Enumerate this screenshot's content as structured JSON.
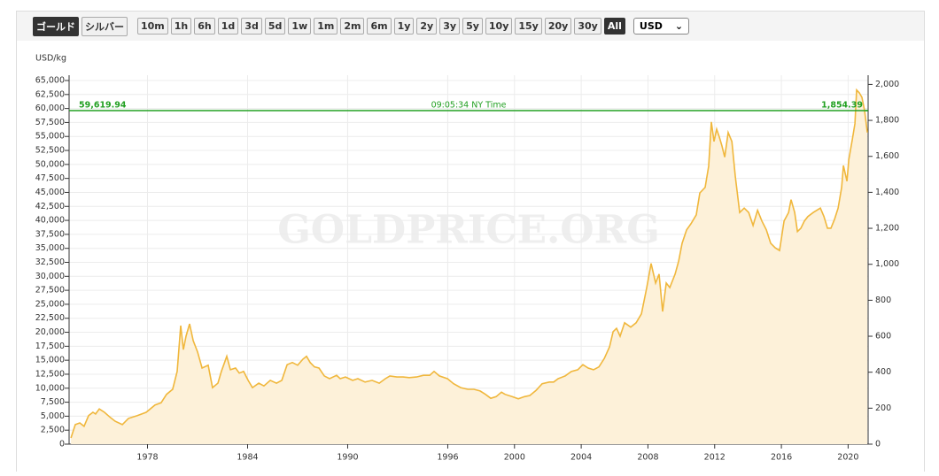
{
  "toolbar": {
    "metal_buttons": [
      "ゴールド",
      "シルバー"
    ],
    "active_metal": 0,
    "range_buttons": [
      "10m",
      "1h",
      "6h",
      "1d",
      "3d",
      "5d",
      "1w",
      "1m",
      "2m",
      "6m",
      "1y",
      "2y",
      "3y",
      "5y",
      "10y",
      "15y",
      "20y",
      "30y",
      "All"
    ],
    "active_range": 18,
    "currency": "USD"
  },
  "chart_data": {
    "type": "area",
    "y_label": "USD/kg",
    "watermark": "GOLDPRICE.ORG",
    "color": "#f0b73c",
    "fill": "#fdf1d9",
    "grid": true,
    "x": [
      1973.41,
      1973.67,
      1973.94,
      1974.2,
      1974.47,
      1974.73,
      1974.89,
      1975.11,
      1975.42,
      1975.8,
      1976.06,
      1976.49,
      1976.86,
      1977.39,
      1977.92,
      1978.45,
      1978.82,
      1979.14,
      1979.51,
      1979.78,
      1979.99,
      1980.15,
      1980.31,
      1980.52,
      1980.74,
      1981.0,
      1981.27,
      1981.64,
      1981.9,
      1982.22,
      1982.43,
      1982.75,
      1982.97,
      1983.28,
      1983.5,
      1983.76,
      1984.03,
      1984.29,
      1984.67,
      1984.98,
      1985.36,
      1985.73,
      1986.05,
      1986.37,
      1986.68,
      1987.0,
      1987.32,
      1987.53,
      1987.75,
      1988.01,
      1988.28,
      1988.6,
      1988.91,
      1989.34,
      1989.55,
      1989.87,
      1990.3,
      1990.61,
      1991.04,
      1991.46,
      1991.89,
      1992.26,
      1992.53,
      1992.95,
      1993.32,
      1993.69,
      1994.12,
      1994.54,
      1994.92,
      1995.18,
      1995.5,
      1995.98,
      1996.35,
      1996.77,
      1997.2,
      1997.57,
      1997.94,
      1998.26,
      1998.58,
      1998.9,
      1999.22,
      1999.43,
      1999.86,
      2000.23,
      2000.6,
      2000.92,
      2001.29,
      2001.66,
      2002.09,
      2002.35,
      2002.62,
      2003.04,
      2003.41,
      2003.79,
      2004.1,
      2004.42,
      2004.74,
      2005.06,
      2005.38,
      2005.7,
      2005.91,
      2006.12,
      2006.33,
      2006.6,
      2006.97,
      2007.29,
      2007.61,
      2007.93,
      2008.19,
      2008.46,
      2008.67,
      2008.88,
      2009.1,
      2009.31,
      2009.63,
      2009.84,
      2010.05,
      2010.32,
      2010.58,
      2010.9,
      2011.11,
      2011.43,
      2011.64,
      2011.8,
      2011.96,
      2012.12,
      2012.28,
      2012.44,
      2012.6,
      2012.81,
      2013.03,
      2013.24,
      2013.5,
      2013.77,
      2014.04,
      2014.3,
      2014.57,
      2014.83,
      2015.1,
      2015.36,
      2015.63,
      2015.89,
      2016.16,
      2016.43,
      2016.58,
      2016.8,
      2016.96,
      2017.17,
      2017.38,
      2017.59,
      2017.91,
      2018.12,
      2018.34,
      2018.55,
      2018.76,
      2018.97,
      2019.19,
      2019.4,
      2019.61,
      2019.72,
      2019.93,
      2020.04,
      2020.25,
      2020.41,
      2020.51,
      2020.67,
      2020.83,
      2020.99,
      2021.15
    ],
    "values": [
      1100,
      3500,
      3800,
      3200,
      5100,
      5700,
      5400,
      6300,
      5700,
      4700,
      4100,
      3500,
      4600,
      5100,
      5700,
      7000,
      7400,
      8900,
      9800,
      13000,
      21200,
      16900,
      19300,
      21500,
      18500,
      16500,
      13600,
      14100,
      10100,
      10900,
      13000,
      15700,
      13300,
      13600,
      12700,
      13000,
      11400,
      10100,
      10900,
      10400,
      11400,
      10900,
      11400,
      14200,
      14600,
      14100,
      15200,
      15700,
      14600,
      13800,
      13600,
      12200,
      11700,
      12300,
      11700,
      12000,
      11400,
      11700,
      11100,
      11400,
      10900,
      11700,
      12200,
      12000,
      12000,
      11900,
      12000,
      12300,
      12300,
      13000,
      12200,
      11700,
      10800,
      10100,
      9800,
      9800,
      9500,
      8900,
      8200,
      8500,
      9300,
      8900,
      8500,
      8100,
      8500,
      8700,
      9600,
      10800,
      11100,
      11100,
      11700,
      12200,
      13000,
      13300,
      14200,
      13600,
      13300,
      13800,
      15300,
      17400,
      20100,
      20700,
      19300,
      21700,
      20900,
      21700,
      23300,
      28000,
      32300,
      28800,
      30400,
      23700,
      28800,
      28000,
      30400,
      32700,
      35900,
      38300,
      39400,
      41000,
      44900,
      45900,
      49700,
      57600,
      54100,
      56300,
      54900,
      53300,
      51300,
      55700,
      54100,
      47800,
      41400,
      42200,
      41400,
      39100,
      41800,
      39900,
      38300,
      35900,
      35100,
      34600,
      39900,
      41400,
      43700,
      41400,
      38000,
      38600,
      39900,
      40700,
      41400,
      41800,
      42200,
      40700,
      38600,
      38600,
      40200,
      42200,
      45900,
      49800,
      47000,
      50900,
      54400,
      57300,
      63300,
      62800,
      62000,
      59600,
      55700
    ],
    "xlim": [
      1973.3,
      2021.2
    ],
    "xticks": [
      1978,
      1984,
      1990,
      1996,
      2000,
      2004,
      2008,
      2012,
      2016,
      2020
    ],
    "ylim": [
      0,
      65000
    ],
    "yticks": [
      0,
      {
        "value": 2500,
        "label": "2,500"
      },
      {
        "value": 5000,
        "label": "5,000"
      },
      {
        "value": 7500,
        "label": "7,500"
      },
      {
        "value": 10000,
        "label": "10,000"
      },
      {
        "value": 12500,
        "label": "12,500"
      },
      {
        "value": 15000,
        "label": "15,000"
      },
      {
        "value": 17500,
        "label": "17,500"
      },
      {
        "value": 20000,
        "label": "20,000"
      },
      {
        "value": 22500,
        "label": "22,500"
      },
      {
        "value": 25000,
        "label": "25,000"
      },
      {
        "value": 27500,
        "label": "27,500"
      },
      {
        "value": 30000,
        "label": "30,000"
      },
      {
        "value": 32500,
        "label": "32,500"
      },
      {
        "value": 35000,
        "label": "35,000"
      },
      {
        "value": 37500,
        "label": "37,500"
      },
      {
        "value": 40000,
        "label": "40,000"
      },
      {
        "value": 42500,
        "label": "42,500"
      },
      {
        "value": 45000,
        "label": "45,000"
      },
      {
        "value": 47500,
        "label": "47,500"
      },
      {
        "value": 50000,
        "label": "50,000"
      },
      {
        "value": 52500,
        "label": "52,500"
      },
      {
        "value": 55000,
        "label": "55,000"
      },
      {
        "value": 57500,
        "label": "57,500"
      },
      {
        "value": 60000,
        "label": "60,000"
      },
      {
        "value": 62500,
        "label": "62,500"
      },
      {
        "value": 65000,
        "label": "65,000"
      }
    ],
    "y2lim": [
      0,
      2021.7
    ],
    "y2ticks": [
      0,
      200,
      400,
      600,
      800,
      {
        "value": 1000,
        "label": "1,000"
      },
      {
        "value": 1200,
        "label": "1,200"
      },
      {
        "value": 1400,
        "label": "1,400"
      },
      {
        "value": 1600,
        "label": "1,600"
      },
      {
        "value": 1800,
        "label": "1,800"
      },
      {
        "value": 2000,
        "label": "2,000"
      }
    ],
    "reference_line": {
      "value": 59619.94,
      "label": "59,619.94",
      "y2_value": 1854.39,
      "y2_label": "1,854.39",
      "time_label": "09:05:34 NY Time",
      "color": "#22a022"
    }
  }
}
